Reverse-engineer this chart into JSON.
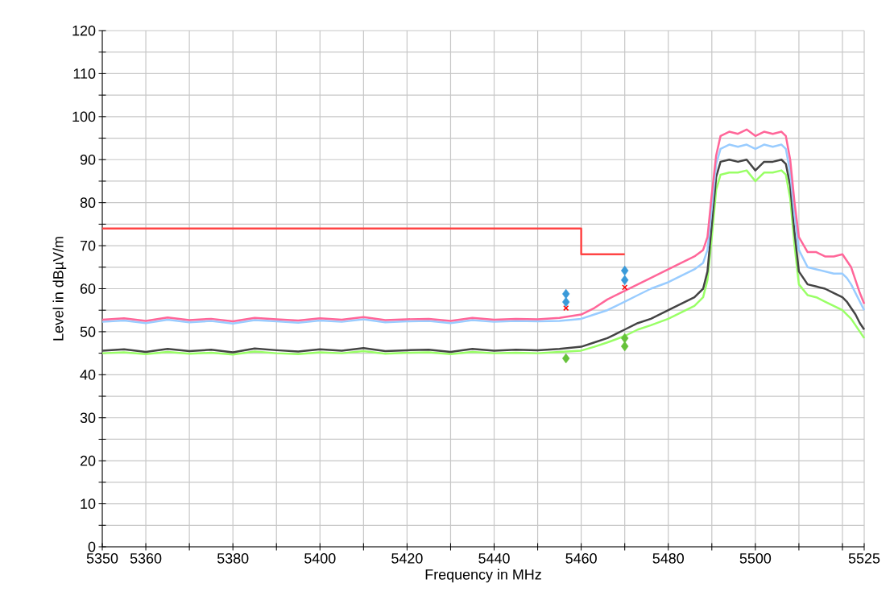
{
  "chart_data": {
    "type": "line",
    "xlabel": "Frequency in MHz",
    "ylabel": "Level in dBµV/m",
    "xlim": [
      5350,
      5525
    ],
    "ylim": [
      0,
      120
    ],
    "xticks": [
      5350,
      5360,
      {
        "value": 5370,
        "label": null
      },
      5380,
      {
        "value": 5390,
        "label": null
      },
      5400,
      {
        "value": 5410,
        "label": null
      },
      5420,
      {
        "value": 5430,
        "label": null
      },
      5440,
      {
        "value": 5450,
        "label": null
      },
      5460,
      {
        "value": 5470,
        "label": null
      },
      5480,
      {
        "value": 5490,
        "label": null
      },
      5500,
      {
        "value": 5510,
        "label": null
      },
      {
        "value": 5520,
        "label": null
      },
      5525
    ],
    "yticks": [
      0,
      {
        "value": 5,
        "label": null
      },
      10,
      {
        "value": 15,
        "label": null
      },
      20,
      {
        "value": 25,
        "label": null
      },
      30,
      {
        "value": 35,
        "label": null
      },
      40,
      {
        "value": 45,
        "label": null
      },
      50,
      {
        "value": 55,
        "label": null
      },
      60,
      {
        "value": 65,
        "label": null
      },
      70,
      {
        "value": 75,
        "label": null
      },
      80,
      {
        "value": 85,
        "label": null
      },
      90,
      {
        "value": 95,
        "label": null
      },
      100,
      {
        "value": 105,
        "label": null
      },
      110,
      {
        "value": 115,
        "label": null
      },
      120
    ],
    "grid": true,
    "x": [
      5350,
      5355,
      5360,
      5365,
      5370,
      5375,
      5380,
      5385,
      5390,
      5395,
      5400,
      5405,
      5410,
      5415,
      5420,
      5425,
      5430,
      5435,
      5440,
      5445,
      5450,
      5455,
      5460,
      5463,
      5466,
      5470,
      5473,
      5476,
      5480,
      5483,
      5486,
      5488,
      5489,
      5490,
      5491,
      5492,
      5494,
      5496,
      5498,
      5500,
      5502,
      5504,
      5506,
      5507,
      5508,
      5509,
      5510,
      5512,
      5514,
      5516,
      5518,
      5520,
      5521,
      5522,
      5523,
      5524,
      5525
    ],
    "series": [
      {
        "color": "#99ff66",
        "marker": "none",
        "values": [
          45.0,
          45.2,
          44.8,
          45.3,
          44.9,
          45.1,
          44.7,
          45.4,
          45.0,
          44.8,
          45.2,
          45.0,
          45.5,
          44.9,
          45.1,
          45.2,
          44.8,
          45.3,
          45.0,
          45.1,
          45.0,
          45.3,
          45.6,
          46.5,
          47.5,
          49,
          50.5,
          51.5,
          53,
          54.5,
          56,
          58,
          62,
          72,
          83,
          86.5,
          87,
          87,
          87.5,
          85,
          87,
          87,
          87.5,
          86.5,
          81,
          70,
          61,
          58.5,
          58,
          57,
          56,
          55,
          54,
          53,
          51.5,
          50,
          48.5
        ]
      },
      {
        "color": "#444444",
        "marker": "none",
        "values": [
          45.6,
          45.9,
          45.3,
          46.0,
          45.5,
          45.8,
          45.2,
          46.1,
          45.7,
          45.4,
          45.9,
          45.6,
          46.2,
          45.5,
          45.7,
          45.8,
          45.3,
          46.0,
          45.6,
          45.8,
          45.7,
          46,
          46.5,
          47.5,
          48.5,
          50.5,
          52,
          53,
          55,
          56.5,
          58,
          60,
          64,
          75,
          86,
          89.5,
          90,
          89.5,
          90,
          87.5,
          89.5,
          89.5,
          90,
          89,
          84,
          73,
          64,
          61,
          60.5,
          60,
          59,
          58,
          57,
          55.5,
          54,
          52,
          50.5
        ]
      },
      {
        "color": "#99ccff",
        "marker": "none",
        "values": [
          52.3,
          52.6,
          52.0,
          52.8,
          52.2,
          52.5,
          51.9,
          52.7,
          52.4,
          52.1,
          52.6,
          52.3,
          52.9,
          52.2,
          52.4,
          52.5,
          52.0,
          52.7,
          52.3,
          52.5,
          52.4,
          52.5,
          53,
          54,
          55,
          57,
          58.5,
          60,
          61.5,
          63,
          64.5,
          66,
          69,
          79,
          89,
          92.5,
          93.5,
          93,
          93.5,
          92.5,
          93.5,
          93,
          93.5,
          92.5,
          87,
          77,
          69,
          65,
          64.5,
          64,
          63.5,
          63.5,
          62.5,
          61,
          59,
          57,
          55
        ]
      },
      {
        "color": "#ff6699",
        "marker": "none",
        "values": [
          52.8,
          53.1,
          52.5,
          53.3,
          52.7,
          53.0,
          52.4,
          53.2,
          52.9,
          52.6,
          53.1,
          52.8,
          53.4,
          52.7,
          52.9,
          53.0,
          52.5,
          53.2,
          52.8,
          53.0,
          52.9,
          53.2,
          54,
          55.5,
          57.5,
          59.5,
          61,
          62.5,
          64.5,
          66,
          67.5,
          69,
          72,
          82,
          91,
          95.5,
          96.5,
          96,
          97,
          95.5,
          96.5,
          96,
          96.5,
          95.5,
          90,
          80,
          72,
          68.5,
          68.5,
          67.5,
          67.5,
          68,
          66.5,
          65,
          62,
          59,
          56.5
        ]
      },
      {
        "color": "#ff4444",
        "marker": "none",
        "x": [
          5350,
          5460,
          5460,
          5470
        ],
        "values": [
          74,
          74,
          68,
          68
        ]
      },
      {
        "type": "scatter",
        "color": "#ff0000",
        "marker": "cross",
        "x": [
          5456.5,
          5470
        ],
        "values": [
          55.5,
          60.3
        ]
      },
      {
        "type": "scatter",
        "color": "#3a9ad9",
        "marker": "diamond",
        "x": [
          5456.5,
          5456.5,
          5470,
          5470
        ],
        "values": [
          58.8,
          56.9,
          64.2,
          62.0
        ]
      },
      {
        "type": "scatter",
        "color": "#66c23a",
        "marker": "diamond",
        "x": [
          5456.5,
          5470,
          5470
        ],
        "values": [
          43.8,
          48.5,
          46.6
        ]
      }
    ]
  }
}
